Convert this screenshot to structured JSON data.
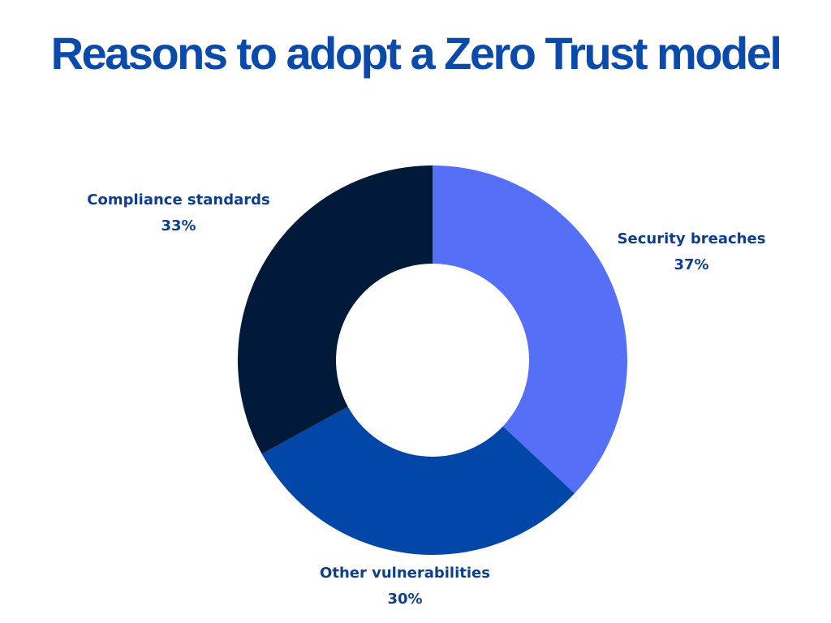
{
  "chart_data": {
    "type": "pie",
    "variant": "donut",
    "title": "Reasons to adopt a Zero Trust model",
    "start_angle": "12 o'clock",
    "direction": "clockwise",
    "slices": [
      {
        "label": "Security breaches",
        "value": 37,
        "value_label": "37%",
        "color": "#5570f6"
      },
      {
        "label": "Other vulnerabilities",
        "value": 30,
        "value_label": "30%",
        "color": "#0246a8"
      },
      {
        "label": "Compliance standards",
        "value": 33,
        "value_label": "33%",
        "color": "#011a3a"
      }
    ],
    "unit": "%",
    "legend": "none (labels placed outside slices)"
  },
  "colors": {
    "title": "#0a4aaa",
    "label_text": "#0f3e8a",
    "background": "#ffffff"
  }
}
